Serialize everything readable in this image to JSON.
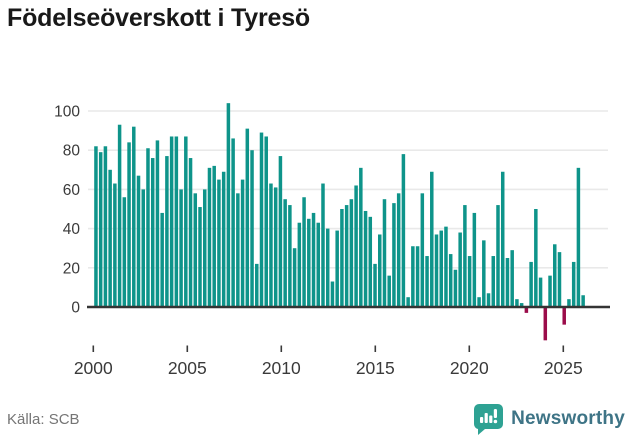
{
  "header": {
    "title": "Födelseöverskott i Tyresö"
  },
  "footer": {
    "source": "Källa: SCB",
    "brand": "Newsworthy"
  },
  "colors": {
    "positive_bar": "#0E948A",
    "negative_bar": "#9B0C4A",
    "axis": "#343434",
    "grid": "#E9E9E9",
    "tick_label": "#3A3A3A",
    "title": "#191919",
    "source_text": "#757575",
    "brand_text": "#3E7486",
    "brand_icon": "#2EA293"
  },
  "chart_data": {
    "type": "bar",
    "title": "Födelseöverskott i Tyresö",
    "xlabel": "",
    "ylabel": "",
    "source": "SCB",
    "frequency": "quarterly",
    "start": "2000-Q1",
    "end": "2025-Q4",
    "grid": true,
    "legend": false,
    "ylim": [
      -25,
      112
    ],
    "yticks": [
      0,
      20,
      40,
      60,
      80,
      100
    ],
    "xticks": [
      2000,
      2005,
      2010,
      2015,
      2020,
      2025
    ],
    "values": [
      82,
      79,
      82,
      70,
      63,
      93,
      56,
      84,
      92,
      67,
      60,
      81,
      76,
      85,
      48,
      77,
      87,
      87,
      60,
      87,
      76,
      58,
      51,
      60,
      71,
      72,
      65,
      69,
      104,
      86,
      58,
      65,
      91,
      80,
      22,
      89,
      87,
      63,
      61,
      77,
      55,
      52,
      30,
      43,
      56,
      45,
      48,
      43,
      63,
      40,
      13,
      39,
      50,
      52,
      55,
      62,
      71,
      49,
      46,
      22,
      37,
      55,
      16,
      53,
      58,
      78,
      5,
      31,
      31,
      58,
      26,
      69,
      37,
      39,
      41,
      27,
      19,
      38,
      52,
      26,
      48,
      5,
      34,
      7,
      26,
      52,
      69,
      25,
      29,
      4,
      2,
      -3,
      23,
      50,
      15,
      -17,
      16,
      32,
      28,
      -9,
      4,
      23,
      71,
      6
    ]
  }
}
